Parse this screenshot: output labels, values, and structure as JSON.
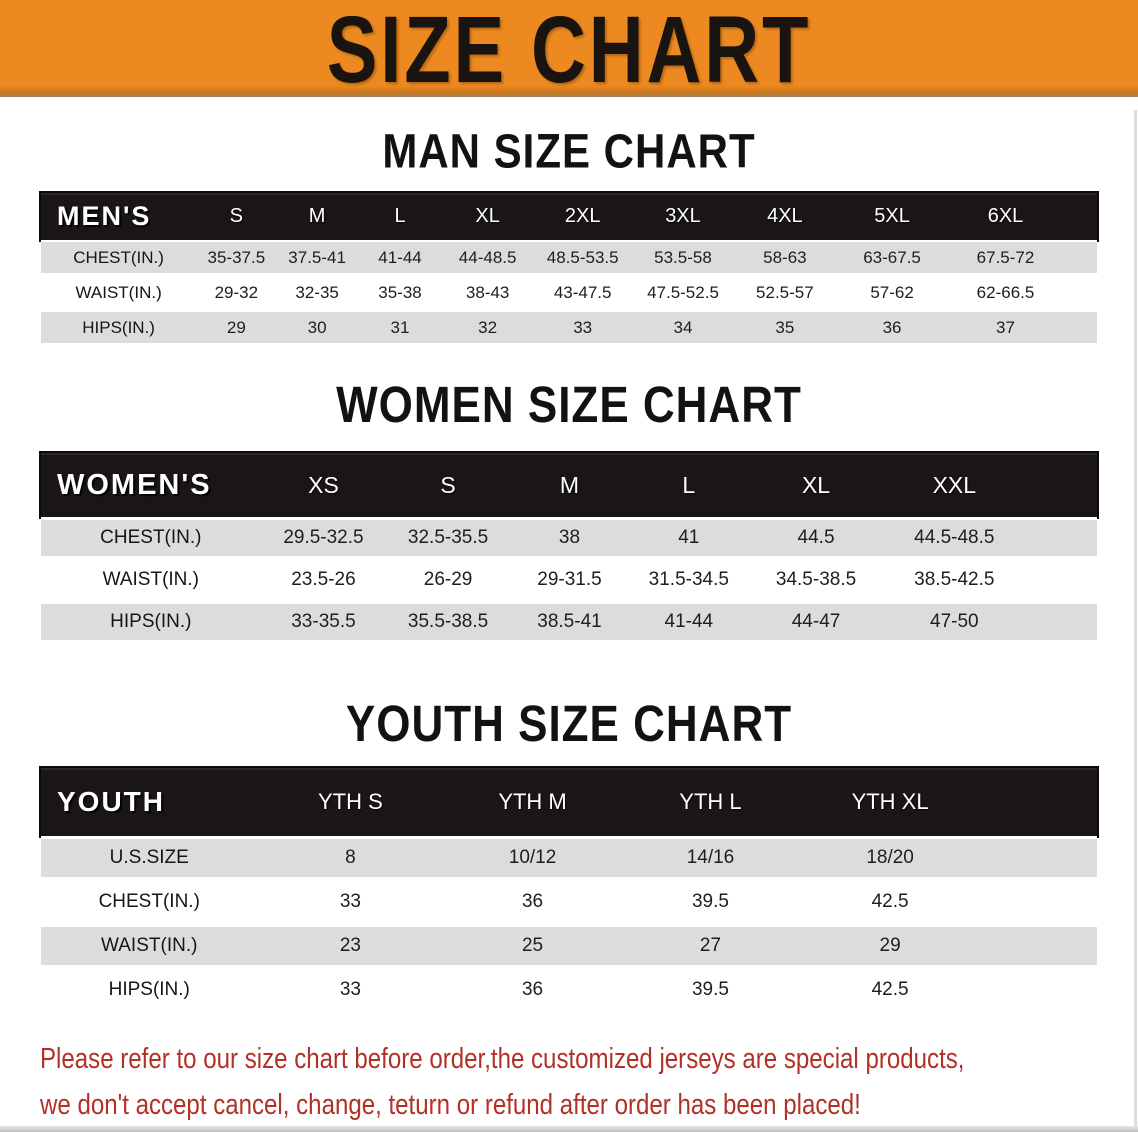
{
  "colors": {
    "banner_bg": "#EC8A21",
    "banner_edge": "#9A8A6E",
    "banner_text": "#1A1410",
    "table_header_bg": "#1B1616",
    "table_header_text": "#FFFFFF",
    "shaded_row_bg": "#DCDCDC",
    "body_text": "#1E1E1E",
    "disclaimer_text": "#B23127"
  },
  "banner": {
    "title": "SIZE CHART"
  },
  "sections": [
    {
      "heading": "MAN SIZE CHART",
      "table": {
        "corner": "MEN'S",
        "columns": [
          "S",
          "M",
          "L",
          "XL",
          "2XL",
          "3XL",
          "4XL",
          "5XL",
          "6XL"
        ],
        "rows": [
          {
            "label": "CHEST(IN.)",
            "values": [
              "35-37.5",
              "37.5-41",
              "41-44",
              "44-48.5",
              "48.5-53.5",
              "53.5-58",
              "58-63",
              "63-67.5",
              "67.5-72"
            ]
          },
          {
            "label": "WAIST(IN.)",
            "values": [
              "29-32",
              "32-35",
              "35-38",
              "38-43",
              "43-47.5",
              "47.5-52.5",
              "52.5-57",
              "57-62",
              "62-66.5"
            ]
          },
          {
            "label": "HIPS(IN.)",
            "values": [
              "29",
              "30",
              "31",
              "32",
              "33",
              "34",
              "35",
              "36",
              "37"
            ]
          }
        ]
      }
    },
    {
      "heading": "WOMEN SIZE CHART",
      "table": {
        "corner": "WOMEN'S",
        "columns": [
          "XS",
          "S",
          "M",
          "L",
          "XL",
          "XXL"
        ],
        "rows": [
          {
            "label": "CHEST(IN.)",
            "values": [
              "29.5-32.5",
              "32.5-35.5",
              "38",
              "41",
              "44.5",
              "44.5-48.5"
            ]
          },
          {
            "label": "WAIST(IN.)",
            "values": [
              "23.5-26",
              "26-29",
              "29-31.5",
              "31.5-34.5",
              "34.5-38.5",
              "38.5-42.5"
            ]
          },
          {
            "label": "HIPS(IN.)",
            "values": [
              "33-35.5",
              "35.5-38.5",
              "38.5-41",
              "41-44",
              "44-47",
              "47-50"
            ]
          }
        ]
      }
    },
    {
      "heading": "YOUTH SIZE CHART",
      "table": {
        "corner": "YOUTH",
        "columns": [
          "YTH S",
          "YTH M",
          "YTH L",
          "YTH XL"
        ],
        "rows": [
          {
            "label": "U.S.SIZE",
            "values": [
              "8",
              "10/12",
              "14/16",
              "18/20"
            ]
          },
          {
            "label": "CHEST(IN.)",
            "values": [
              "33",
              "36",
              "39.5",
              "42.5"
            ]
          },
          {
            "label": "WAIST(IN.)",
            "values": [
              "23",
              "25",
              "27",
              "29"
            ]
          },
          {
            "label": "HIPS(IN.)",
            "values": [
              "33",
              "36",
              "39.5",
              "42.5"
            ]
          }
        ]
      }
    }
  ],
  "disclaimer": {
    "line1": "Please refer to our size chart before order,the customized jerseys are special products,",
    "line2": "we don't accept cancel, change, teturn or refund after order has been placed!"
  }
}
